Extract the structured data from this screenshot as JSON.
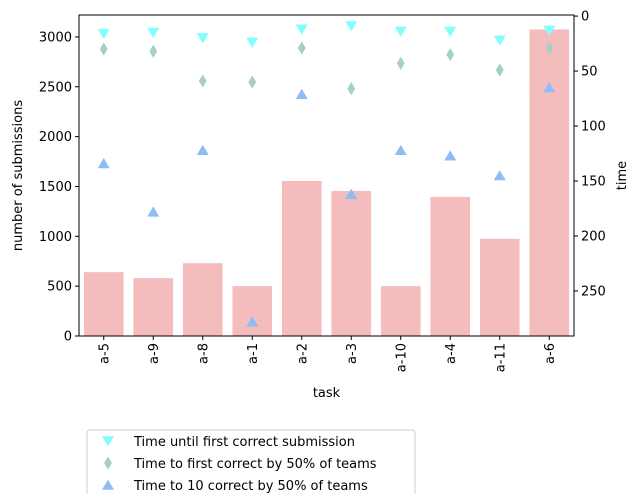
{
  "chart_data": {
    "type": "bar",
    "categories": [
      "a-5",
      "a-9",
      "a-8",
      "a-1",
      "a-2",
      "a-3",
      "a-10",
      "a-4",
      "a-11",
      "a-6"
    ],
    "xlabel": "task",
    "ylabel": "number of submissions",
    "ylabel_right": "time",
    "ylim": [
      0,
      3220
    ],
    "yticks": [
      0,
      500,
      1000,
      1500,
      2000,
      2500,
      3000
    ],
    "ylim_right": [
      291,
      -1
    ],
    "yticks_right": [
      0,
      50,
      100,
      150,
      200,
      250
    ],
    "bar_color": "#f4bcbc",
    "bars": {
      "values": [
        640,
        580,
        730,
        500,
        1555,
        1455,
        500,
        1395,
        975,
        3075
      ]
    },
    "series": [
      {
        "name": "Time until first correct submission",
        "axis": "right",
        "marker": "triangle-down",
        "color": "#80ffff",
        "values": [
          16,
          15,
          20,
          24,
          12,
          9,
          14,
          14,
          22,
          13
        ]
      },
      {
        "name": "Time to first correct by 50% of teams",
        "axis": "right",
        "marker": "diamond",
        "color": "#a6cfc6",
        "values": [
          30,
          32,
          59,
          60,
          29,
          66,
          43,
          35,
          49,
          29
        ]
      },
      {
        "name": "Time to 10 correct by 50% of teams",
        "axis": "right",
        "marker": "triangle-up",
        "color": "#8fbcf5",
        "values": [
          134,
          178,
          122,
          278,
          71,
          162,
          122,
          127,
          145,
          65
        ]
      }
    ],
    "legend_position": "bottom"
  }
}
